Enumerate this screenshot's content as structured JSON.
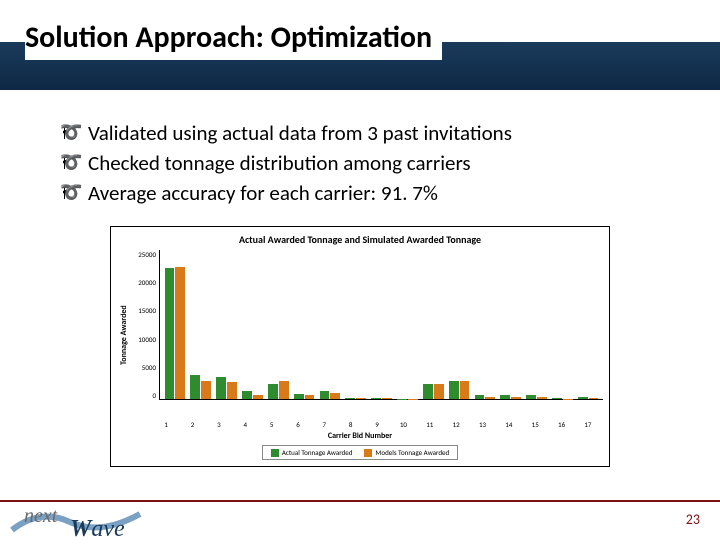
{
  "slide": {
    "title": "Solution Approach:  Optimization",
    "bullets": [
      "Validated using actual data from 3 past invitations",
      "Checked tonnage distribution among carriers",
      "Average accuracy for each carrier: 91. 7%"
    ],
    "page_number": "23",
    "accent_color": "#7a1212"
  },
  "chart": {
    "type": "bar",
    "title": "Actual Awarded Tonnage and Simulated Awarded Tonnage",
    "x_label": "Carrier Bid Number",
    "y_label": "Tonnage Awarded",
    "ylim": [
      0,
      25000
    ],
    "yticks": [
      "25000",
      "20000",
      "15000",
      "10000",
      "5000",
      "0"
    ],
    "categories": [
      "1",
      "2",
      "3",
      "4",
      "5",
      "6",
      "7",
      "8",
      "9",
      "10",
      "11",
      "12",
      "13",
      "14",
      "15",
      "16",
      "17"
    ],
    "series": [
      {
        "name": "Actual Tonnage Awarded",
        "color": "#2e8b2e",
        "values": [
          22000,
          4000,
          3700,
          1300,
          2600,
          900,
          1400,
          250,
          150,
          50,
          2500,
          3000,
          700,
          700,
          600,
          100,
          400
        ]
      },
      {
        "name": "Models Tonnage Awarded",
        "color": "#d97a1a",
        "values": [
          22200,
          3000,
          2900,
          600,
          3000,
          700,
          1000,
          200,
          100,
          50,
          2600,
          3100,
          400,
          300,
          300,
          50,
          200
        ]
      }
    ],
    "background_color": "#ffffff",
    "axis_color": "#000000",
    "bar_width": 0.9,
    "title_fontsize": 10,
    "label_fontsize": 8,
    "tick_fontsize": 7
  },
  "logo": {
    "text_next": "next",
    "text_wave_w": "W",
    "text_wave_ave": "ave",
    "colors": {
      "next": "#6a6a6a",
      "wave": "#1a3a5a",
      "swoosh": "#7aa0c4"
    }
  }
}
